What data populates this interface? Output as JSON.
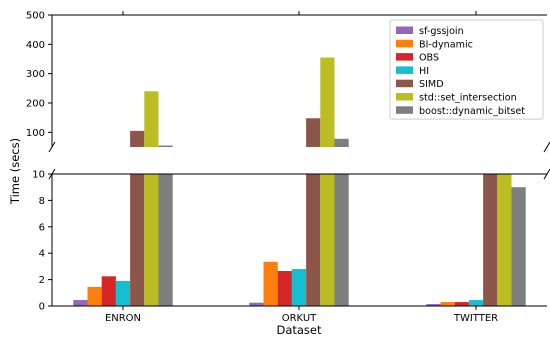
{
  "chart_data": {
    "type": "bar",
    "title": "",
    "xlabel": "Dataset",
    "ylabel": "Time (secs)",
    "categories": [
      "ENRON",
      "ORKUT",
      "TWITTER"
    ],
    "axis_break": true,
    "ylim_upper": [
      50,
      500
    ],
    "ylim_lower": [
      0,
      10
    ],
    "yticks_upper": [
      "100",
      "200",
      "300",
      "400",
      "500"
    ],
    "yticks_lower": [
      "0",
      "2",
      "4",
      "6",
      "8",
      "10"
    ],
    "legend_position": "top-right",
    "series": [
      {
        "name": "sf-gssjoin",
        "color": "#9467bd",
        "values": [
          0.45,
          0.25,
          0.15
        ]
      },
      {
        "name": "BI-dynamic",
        "color": "#ff7f0e",
        "values": [
          1.45,
          3.35,
          0.3
        ]
      },
      {
        "name": "OBS",
        "color": "#d62728",
        "values": [
          2.25,
          2.65,
          0.3
        ]
      },
      {
        "name": "HI",
        "color": "#17becf",
        "values": [
          1.9,
          2.8,
          0.45
        ]
      },
      {
        "name": "SIMD",
        "color": "#8c564b",
        "values": [
          105,
          148,
          10
        ]
      },
      {
        "name": "std::set_intersection",
        "color": "#bcbd22",
        "values": [
          240,
          355,
          45
        ]
      },
      {
        "name": "boost::dynamic_bitset",
        "color": "#7f7f7f",
        "values": [
          55,
          78,
          9
        ]
      }
    ]
  }
}
